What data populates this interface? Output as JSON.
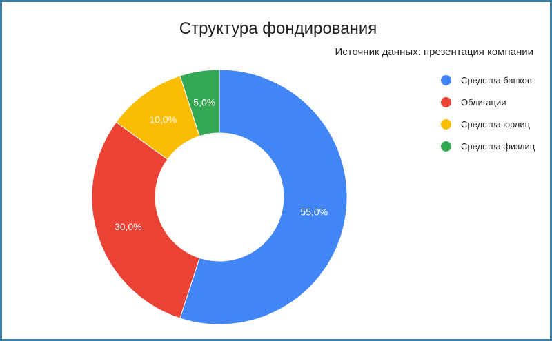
{
  "chart_data": {
    "type": "pie",
    "title": "Структура фондирования",
    "subtitle": "Источник данных: презентация компании",
    "legend_position": "right",
    "categories": [
      "Средства банков",
      "Облигации",
      "Средства юрлиц",
      "Средства физлиц"
    ],
    "values": [
      55.0,
      30.0,
      10.0,
      5.0
    ],
    "data_labels": [
      "55,0%",
      "30,0%",
      "10,0%",
      "5,0%"
    ],
    "colors": [
      "#4285f4",
      "#ea4335",
      "#fbbc04",
      "#34a853"
    ]
  }
}
